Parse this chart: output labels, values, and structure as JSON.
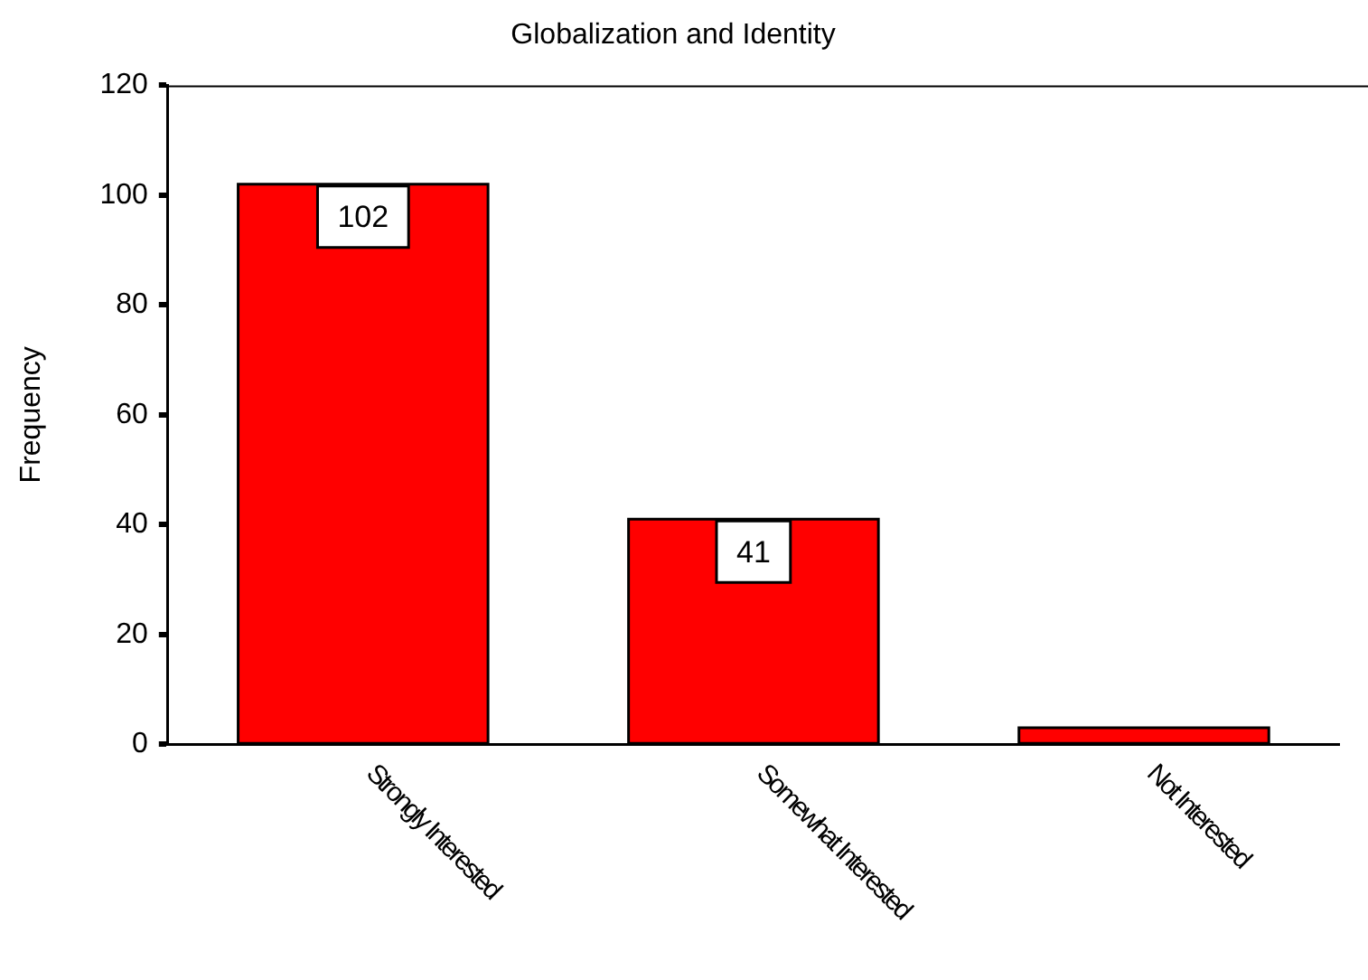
{
  "chart_data": {
    "type": "bar",
    "title": "Globalization and Identity",
    "ylabel": "Frequency",
    "categories": [
      "Strongly Interested",
      "Somewhat Interested",
      "Not Interested"
    ],
    "values": [
      102,
      41,
      3
    ],
    "color": "#ff0000",
    "value_labels": [
      "102",
      "41",
      null
    ],
    "ylim": [
      0,
      120
    ],
    "yticks": [
      0,
      20,
      40,
      60,
      80,
      100,
      120
    ],
    "grid": false,
    "legend": false
  }
}
